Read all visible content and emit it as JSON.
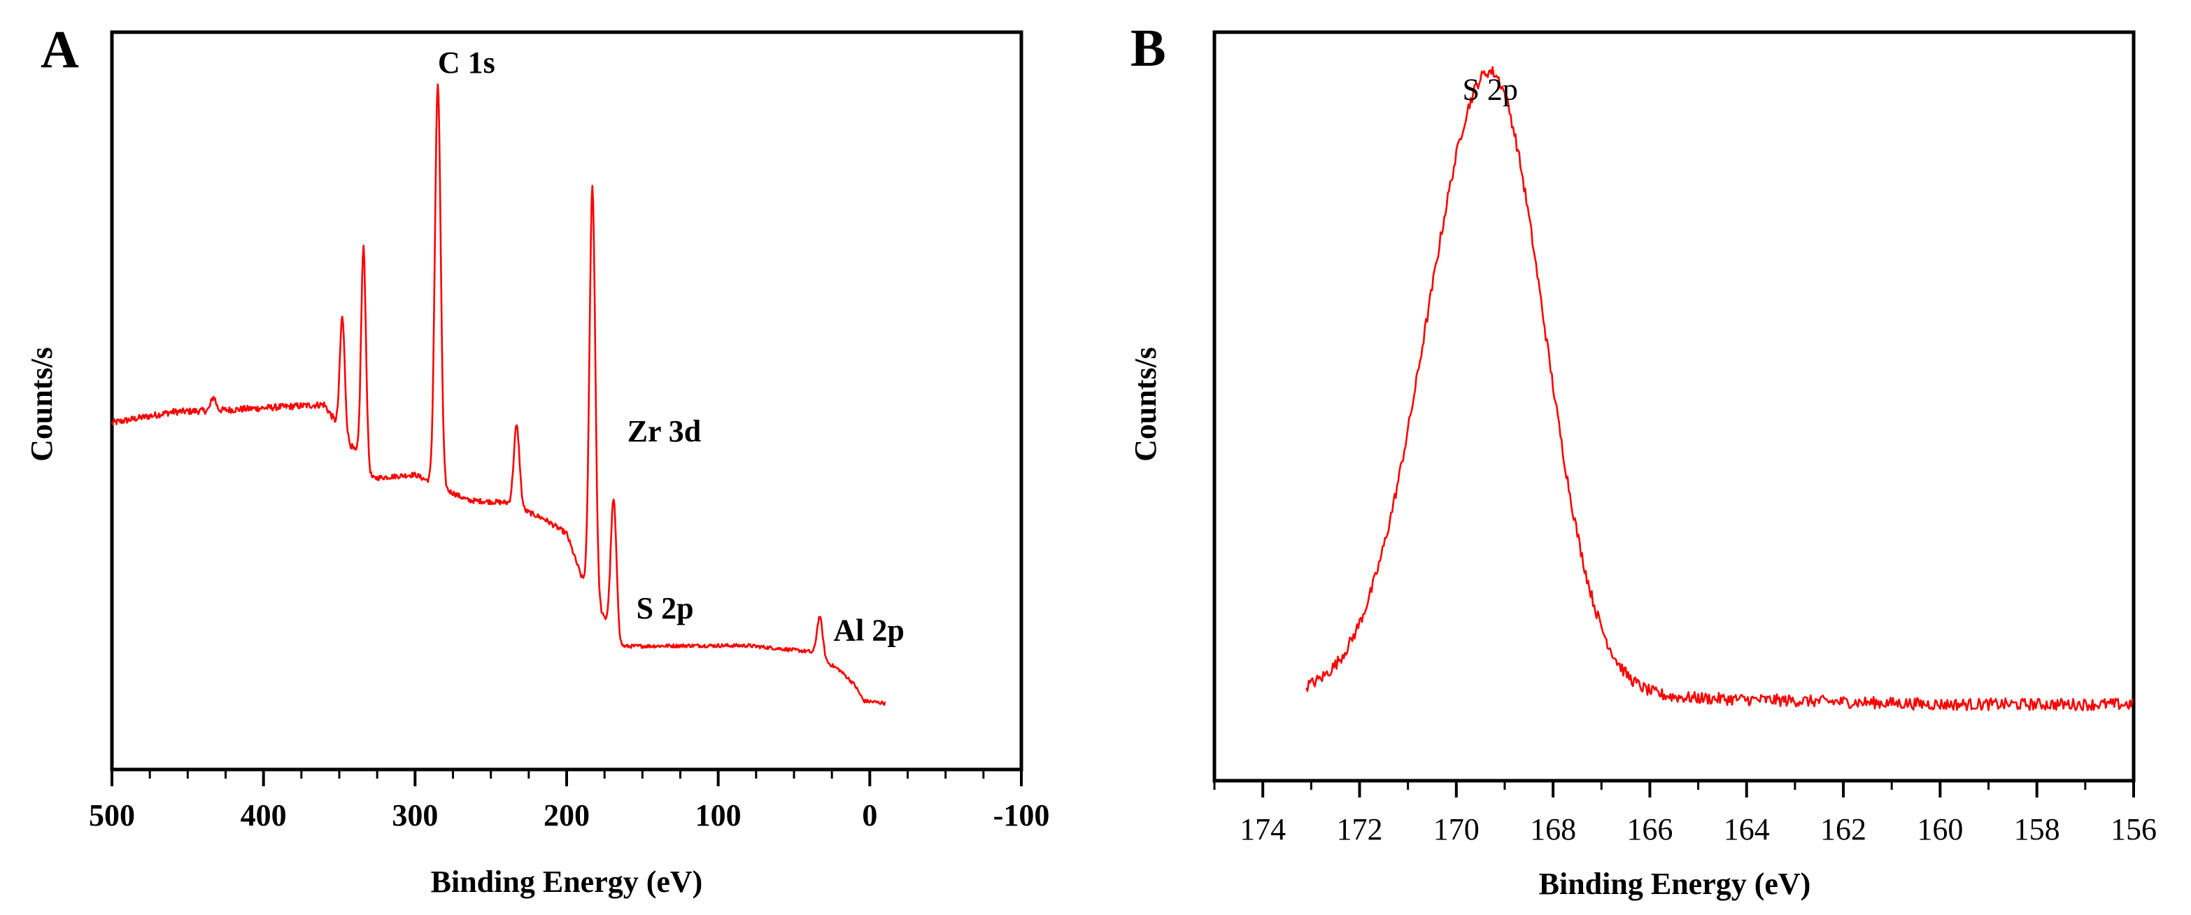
{
  "chart_data": [
    {
      "panel": "A",
      "type": "line",
      "title": "",
      "xlabel": "Binding Energy (eV)",
      "ylabel": "Counts/s",
      "xlim": [
        500,
        -100
      ],
      "ylim": [
        0,
        100
      ],
      "x_ticks": [
        "500",
        "400",
        "300",
        "200",
        "100",
        "0",
        "-100"
      ],
      "x_tick_values": [
        500,
        400,
        300,
        200,
        100,
        0,
        -100
      ],
      "color": "#ff0000",
      "annotations": [
        {
          "label": "C 1s",
          "x": 285,
          "y": 94.5
        },
        {
          "label": "Zr 3d",
          "x": 160,
          "y": 44.5
        },
        {
          "label": "S 2p",
          "x": 154,
          "y": 20.5
        },
        {
          "label": "Al 2p",
          "x": 24,
          "y": 17.5
        }
      ],
      "peaks": [
        {
          "x": 433,
          "y": 50.5
        },
        {
          "x": 348,
          "y": 61.4
        },
        {
          "x": 334,
          "y": 70.7
        },
        {
          "x": 285,
          "y": 93.0
        },
        {
          "x": 233,
          "y": 46.6
        },
        {
          "x": 183,
          "y": 79.1
        },
        {
          "x": 169,
          "y": 36.6
        },
        {
          "x": 33,
          "y": 20.7
        }
      ],
      "baseline": [
        {
          "x": 500,
          "y": 47.0
        },
        {
          "x": 460,
          "y": 48.5
        },
        {
          "x": 420,
          "y": 48.8
        },
        {
          "x": 360,
          "y": 49.5
        },
        {
          "x": 328,
          "y": 39.5
        },
        {
          "x": 300,
          "y": 40.0
        },
        {
          "x": 265,
          "y": 36.5
        },
        {
          "x": 240,
          "y": 36.2
        },
        {
          "x": 215,
          "y": 34.0
        },
        {
          "x": 200,
          "y": 32.0
        },
        {
          "x": 190,
          "y": 26.0
        },
        {
          "x": 165,
          "y": 16.7
        },
        {
          "x": 120,
          "y": 16.8
        },
        {
          "x": 80,
          "y": 16.8
        },
        {
          "x": 40,
          "y": 16.0
        },
        {
          "x": 20,
          "y": 13.5
        },
        {
          "x": 10,
          "y": 11.5
        },
        {
          "x": 4,
          "y": 9.3
        },
        {
          "x": -10,
          "y": 9.0
        }
      ]
    },
    {
      "panel": "B",
      "type": "line",
      "title": "",
      "xlabel": "Binding Energy (eV)",
      "ylabel": "Counts/s",
      "xlim": [
        175,
        156
      ],
      "ylim": [
        0,
        100
      ],
      "x_ticks": [
        "174",
        "172",
        "170",
        "168",
        "166",
        "164",
        "162",
        "160",
        "158",
        "156"
      ],
      "x_tick_values": [
        174,
        172,
        170,
        168,
        166,
        164,
        162,
        160,
        158,
        156
      ],
      "color": "#ff0000",
      "annotations": [
        {
          "label": "S 2p",
          "x": 169.3,
          "y": 91.0
        }
      ],
      "peak": {
        "center": 169.3,
        "height": 83.5,
        "sigma_left": 1.3,
        "sigma_right": 1.1
      },
      "baseline": [
        {
          "x": 173.1,
          "y": 11.5
        },
        {
          "x": 165.0,
          "y": 11.0
        },
        {
          "x": 160.0,
          "y": 10.2
        },
        {
          "x": 156.0,
          "y": 10.2
        }
      ]
    }
  ]
}
